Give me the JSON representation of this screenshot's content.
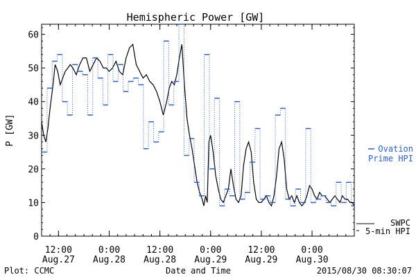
{
  "chart_data": {
    "type": "line",
    "title": "Hemispheric Power [GW]",
    "ylabel": "P [GW]",
    "xlabel": "Date and Time",
    "ylim": [
      0,
      63
    ],
    "yticks": [
      0,
      10,
      20,
      30,
      40,
      50,
      60
    ],
    "x_unit": "hours since 2015-08-27 00:00 UT",
    "xlim": [
      8,
      82
    ],
    "xticks": [
      {
        "x": 12,
        "line1": "12:00",
        "line2": "Aug.27"
      },
      {
        "x": 24,
        "line1": "0:00",
        "line2": "Aug.28"
      },
      {
        "x": 36,
        "line1": "12:00",
        "line2": "Aug.28"
      },
      {
        "x": 48,
        "line1": "0:00",
        "line2": "Aug.29"
      },
      {
        "x": 60,
        "line1": "12:00",
        "line2": "Aug.29"
      },
      {
        "x": 72,
        "line1": "0:00",
        "line2": "Aug.30"
      }
    ],
    "series": [
      {
        "name": "SWPC 5-min HPI",
        "legend_line1": "SWPC",
        "legend_line2": "5-min HPI",
        "color": "#000000",
        "style": "solid",
        "x": [
          8.0,
          8.5,
          9.0,
          9.5,
          10.0,
          10.7,
          11.2,
          11.8,
          12.4,
          13.0,
          13.6,
          14.2,
          14.8,
          15.4,
          16.2,
          17.0,
          17.8,
          18.6,
          19.4,
          20.2,
          21.0,
          21.8,
          22.6,
          23.3,
          24.0,
          24.8,
          25.6,
          26.4,
          27.2,
          28.0,
          28.8,
          29.6,
          30.4,
          31.2,
          32.0,
          32.8,
          33.6,
          34.4,
          35.2,
          36.0,
          36.8,
          37.6,
          38.2,
          38.8,
          39.4,
          40.0,
          40.6,
          41.2,
          41.8,
          42.4,
          43.0,
          43.6,
          44.2,
          44.8,
          45.4,
          46.0,
          46.4,
          46.8,
          47.2,
          47.6,
          48.0,
          48.6,
          49.2,
          49.8,
          50.4,
          51.0,
          51.6,
          52.2,
          52.8,
          53.4,
          54.0,
          54.6,
          55.2,
          55.8,
          56.4,
          57.0,
          57.6,
          58.2,
          58.8,
          59.4,
          60.0,
          60.6,
          61.2,
          61.8,
          62.4,
          63.0,
          63.6,
          64.2,
          64.8,
          65.4,
          66.0,
          66.6,
          67.2,
          67.8,
          68.4,
          69.0,
          69.6,
          70.2,
          70.8,
          71.4,
          72.0,
          72.6,
          73.2,
          73.8,
          74.4,
          75.0,
          75.6,
          76.2,
          76.8,
          77.4,
          78.0,
          78.6,
          79.2,
          79.8,
          80.4,
          81.0,
          81.5,
          82.0
        ],
        "y": [
          34,
          30,
          28,
          32,
          38,
          45,
          51,
          49,
          45,
          47,
          49,
          50,
          51,
          50,
          48,
          51,
          53,
          53,
          49,
          51,
          53,
          52,
          50,
          50,
          49,
          50,
          52,
          49,
          48,
          53,
          56,
          57,
          51,
          49,
          47,
          48,
          46,
          45,
          43,
          40,
          36,
          40,
          44,
          46,
          45,
          48,
          53,
          57,
          45,
          35,
          30,
          26,
          21,
          16,
          13,
          11,
          9,
          12,
          10,
          28,
          30,
          25,
          18,
          14,
          11,
          10,
          12,
          14,
          20,
          15,
          11,
          10,
          12,
          21,
          26,
          28,
          25,
          16,
          11,
          10,
          10,
          11,
          12,
          10,
          9,
          12,
          18,
          26,
          28,
          23,
          14,
          11,
          12,
          10,
          12,
          10,
          9,
          10,
          12,
          15,
          14,
          12,
          11,
          13,
          12,
          12,
          11,
          10,
          11,
          12,
          11,
          10,
          12,
          11,
          11,
          10,
          10,
          9
        ]
      },
      {
        "name": "Ovation Prime HPI",
        "legend_line1": "Ovation",
        "legend_line2": "Prime HPI",
        "color": "#2a5fd0",
        "style": "dotted-step",
        "x": [
          8.0,
          9.3,
          10.5,
          11.7,
          12.9,
          14.1,
          15.3,
          16.5,
          17.7,
          18.9,
          20.1,
          21.3,
          22.5,
          23.7,
          24.9,
          26.1,
          27.3,
          28.5,
          29.7,
          30.9,
          32.1,
          33.3,
          34.5,
          35.7,
          36.9,
          38.1,
          39.3,
          40.5,
          41.7,
          42.9,
          44.1,
          45.3,
          46.5,
          47.7,
          48.9,
          50.1,
          51.3,
          52.5,
          53.7,
          54.9,
          56.1,
          57.3,
          58.5,
          59.7,
          60.9,
          62.1,
          63.3,
          64.5,
          65.7,
          66.9,
          68.1,
          69.3,
          70.5,
          71.7,
          72.9,
          74.1,
          75.3,
          76.5,
          77.7,
          78.9,
          80.1,
          81.3
        ],
        "y": [
          25,
          44,
          52,
          54,
          40,
          36,
          51,
          49,
          48,
          36,
          53,
          47,
          39,
          54,
          46,
          51,
          43,
          46,
          47,
          45,
          26,
          34,
          28,
          31,
          58,
          39,
          46,
          63,
          24,
          29,
          16,
          12,
          54,
          20,
          41,
          9,
          14,
          12,
          40,
          11,
          13,
          22,
          32,
          11,
          12,
          10,
          36,
          38,
          11,
          9,
          14,
          10,
          32,
          10,
          11,
          12,
          10,
          9,
          16,
          10,
          16,
          9
        ]
      }
    ],
    "footer": {
      "left": "Plot: CCMC",
      "right": "2015/08/30 08:30:07"
    }
  }
}
